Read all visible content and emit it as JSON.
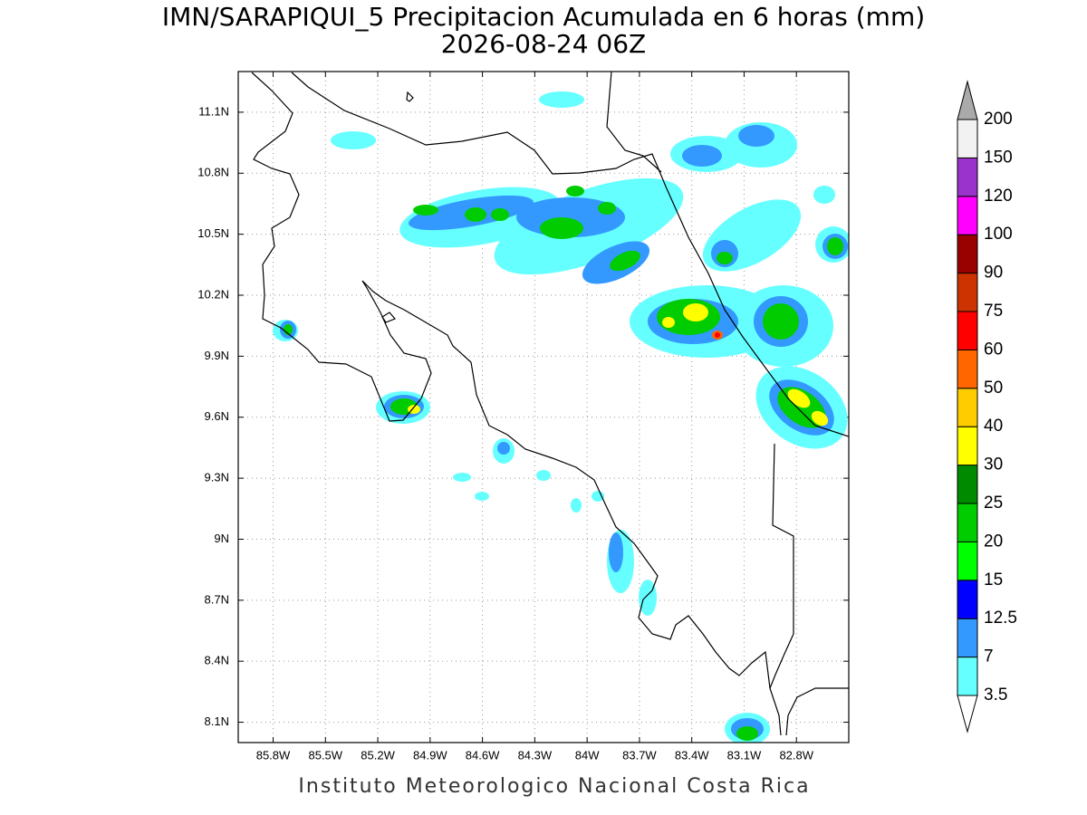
{
  "title": "IMN/SARAPIQUI_5 Precipitacion Acumulada en 6 horas (mm)",
  "date": "2026-08-24 06Z",
  "map": {
    "lon_range": [
      -86.0,
      -82.5
    ],
    "lat_range": [
      8.0,
      11.3
    ],
    "grid": true,
    "lon_ticks": [
      {
        "value": -85.8,
        "label": "85.8W"
      },
      {
        "value": -85.5,
        "label": "85.5W"
      },
      {
        "value": -85.2,
        "label": "85.2W"
      },
      {
        "value": -84.9,
        "label": "84.9W"
      },
      {
        "value": -84.6,
        "label": "84.6W"
      },
      {
        "value": -84.3,
        "label": "84.3W"
      },
      {
        "value": -84.0,
        "label": "84W"
      },
      {
        "value": -83.7,
        "label": "83.7W"
      },
      {
        "value": -83.4,
        "label": "83.4W"
      },
      {
        "value": -83.1,
        "label": "83.1W"
      },
      {
        "value": -82.8,
        "label": "82.8W"
      }
    ],
    "lat_ticks": [
      {
        "value": 8.1,
        "label": "8.1N"
      },
      {
        "value": 8.4,
        "label": "8.4N"
      },
      {
        "value": 8.7,
        "label": "8.7N"
      },
      {
        "value": 9.0,
        "label": "9N"
      },
      {
        "value": 9.3,
        "label": "9.3N"
      },
      {
        "value": 9.6,
        "label": "9.6N"
      },
      {
        "value": 9.9,
        "label": "9.9N"
      },
      {
        "value": 10.2,
        "label": "10.2N"
      },
      {
        "value": 10.5,
        "label": "10.5N"
      },
      {
        "value": 10.8,
        "label": "10.8N"
      },
      {
        "value": 11.1,
        "label": "11.1N"
      }
    ]
  },
  "colorbar": {
    "levels": [
      3.5,
      7,
      12.5,
      15,
      20,
      25,
      30,
      40,
      50,
      60,
      75,
      90,
      100,
      120,
      150,
      200
    ],
    "colors": [
      "#ffffff",
      "#66ffff",
      "#3399ff",
      "#0000ff",
      "#00ff00",
      "#00cc00",
      "#008a00",
      "#ffff00",
      "#ffcc00",
      "#ff6600",
      "#ff0000",
      "#cc3300",
      "#990000",
      "#ff00ff",
      "#9933cc",
      "#f2f2f2",
      "#aaaaaa"
    ]
  },
  "footer": "Instituto Meteorologico Nacional Costa Rica"
}
